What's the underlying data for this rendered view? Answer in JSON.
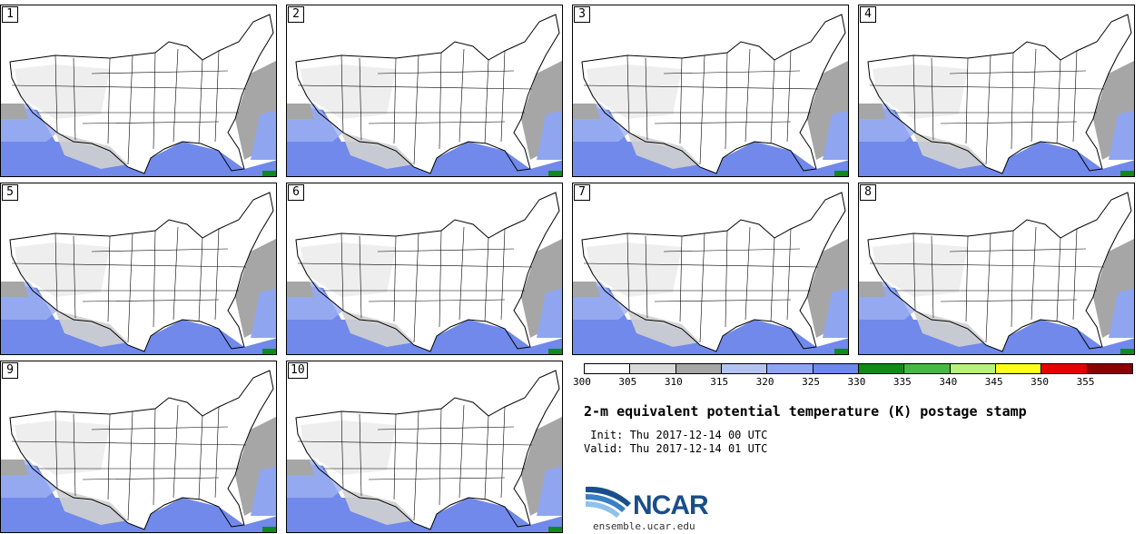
{
  "panels": [
    "1",
    "2",
    "3",
    "4",
    "5",
    "6",
    "7",
    "8",
    "9",
    "10"
  ],
  "colorbar": {
    "ticks": [
      "300",
      "305",
      "310",
      "315",
      "320",
      "325",
      "330",
      "335",
      "340",
      "345",
      "350",
      "355"
    ],
    "colors": [
      "#ffffff",
      "#d9d9d9",
      "#a6a6a6",
      "#b4c4f2",
      "#8fa5f0",
      "#6f88ea",
      "#118a1c",
      "#47b847",
      "#b8f07c",
      "#ffff1a",
      "#e60000",
      "#8b0000"
    ]
  },
  "title": "2-m equivalent potential temperature (K) postage stamp",
  "init": " Init: Thu 2017-12-14 00 UTC",
  "valid": "Valid: Thu 2017-12-14 01 UTC",
  "logo": {
    "text": "NCAR",
    "site": "ensemble.ucar.edu",
    "icon": "ncar-logo-icon"
  }
}
